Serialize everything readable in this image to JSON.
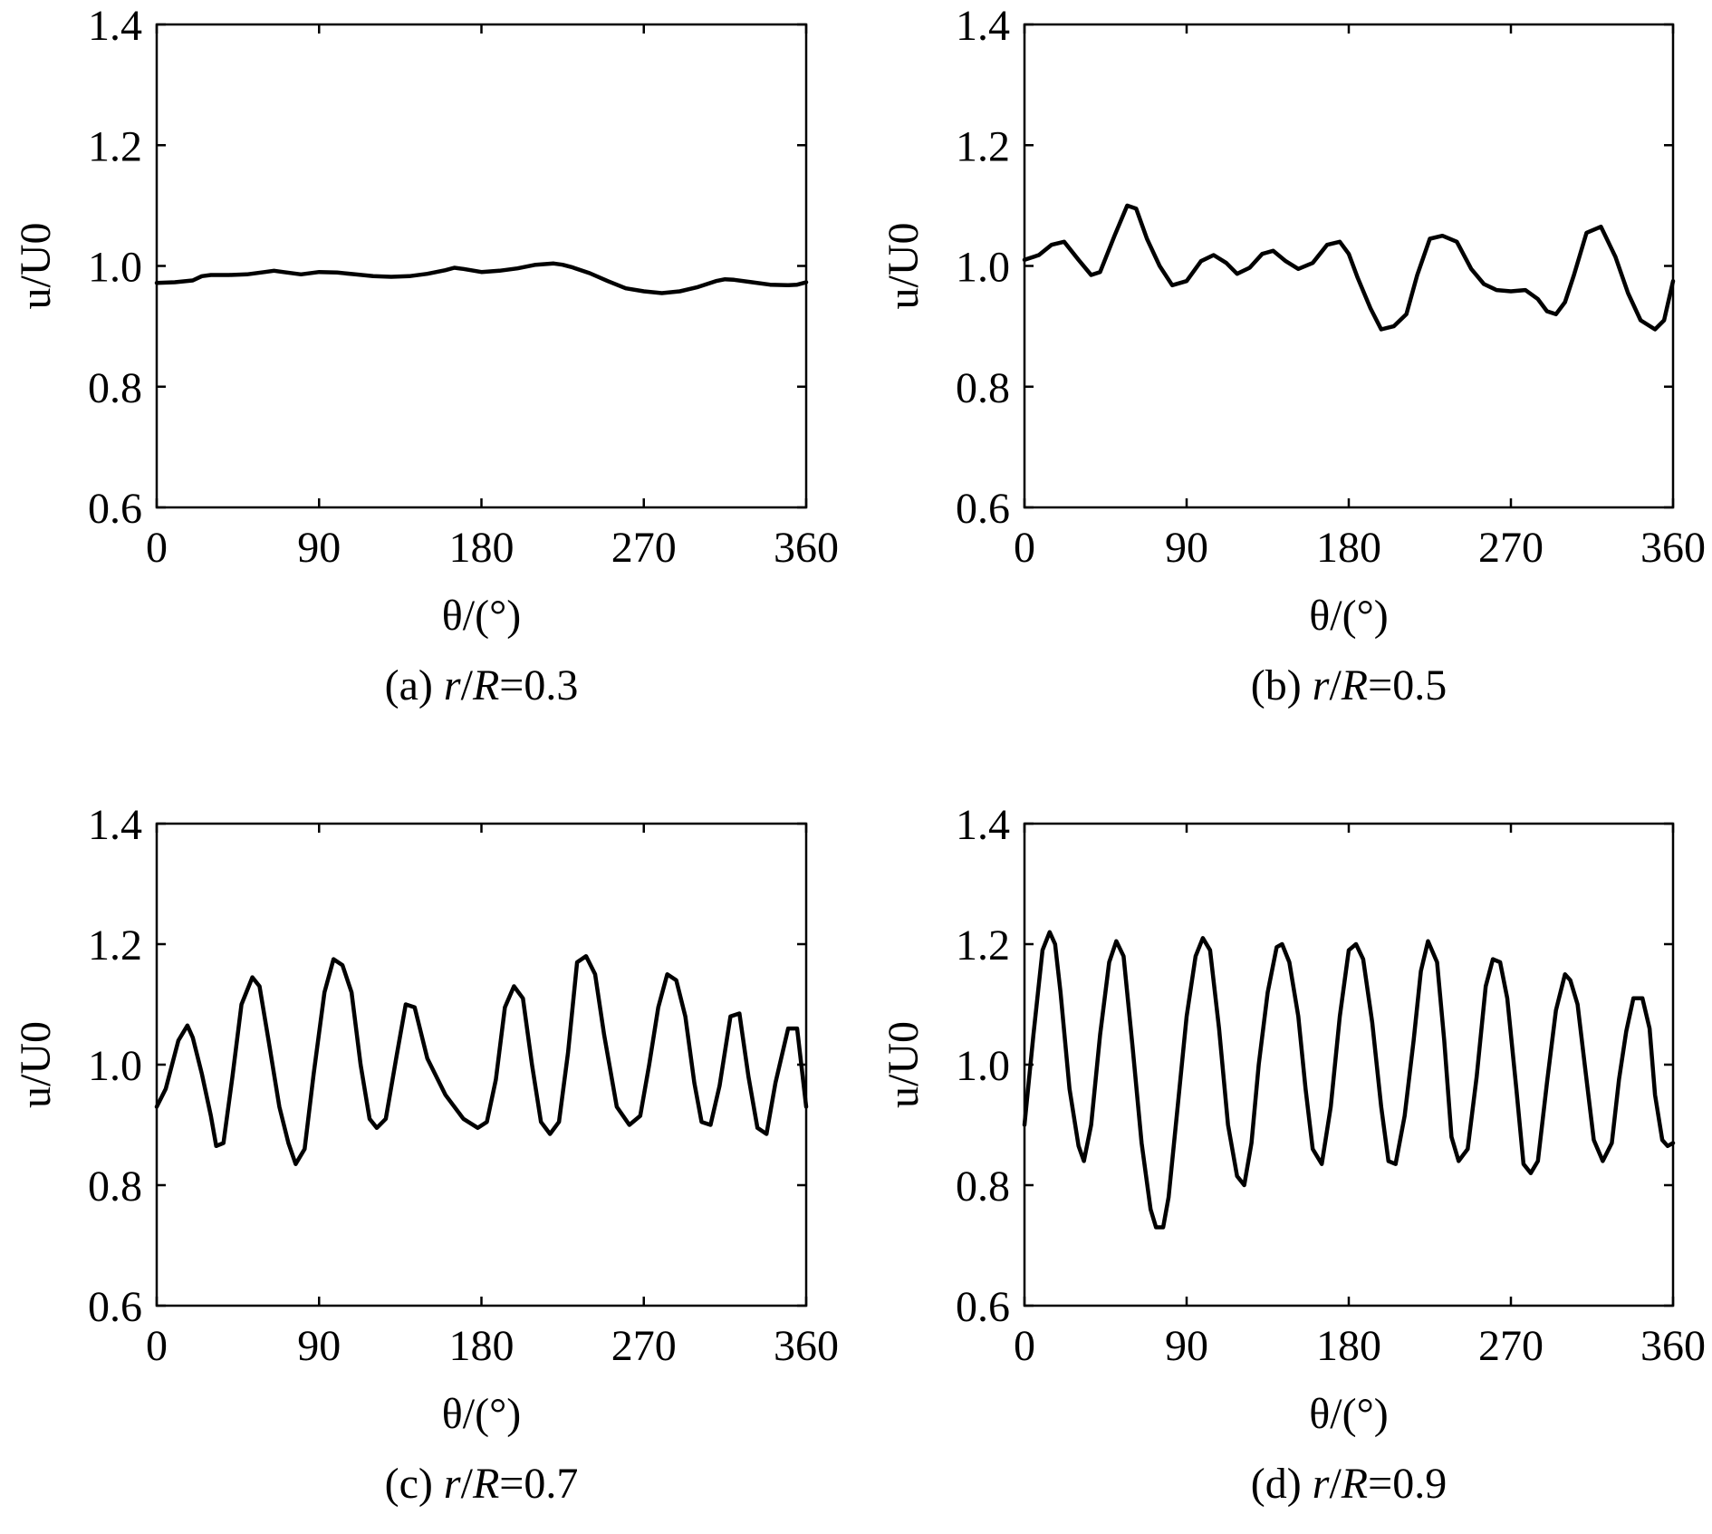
{
  "figure": {
    "panels": [
      {
        "caption": {
          "prefix": "(a) ",
          "var": "r",
          "slash": "/",
          "var2": "R",
          "eq": "=0.3"
        }
      },
      {
        "caption": {
          "prefix": "(b) ",
          "var": "r",
          "slash": "/",
          "var2": "R",
          "eq": "=0.5"
        }
      },
      {
        "caption": {
          "prefix": "(c) ",
          "var": "r",
          "slash": "/",
          "var2": "R",
          "eq": "=0.7"
        }
      },
      {
        "caption": {
          "prefix": "(d) ",
          "var": "r",
          "slash": "/",
          "var2": "R",
          "eq": "=0.9"
        }
      }
    ]
  },
  "chart_data": [
    {
      "type": "line",
      "title": "(a) r/R=0.3",
      "xlabel": "θ/(°)",
      "ylabel": "u/U0",
      "xlim": [
        0,
        360
      ],
      "ylim": [
        0.6,
        1.4
      ],
      "xticks": [
        "0",
        "90",
        "180",
        "270",
        "360"
      ],
      "yticks": [
        "0.6",
        "0.8",
        "1.0",
        "1.2",
        "1.4"
      ],
      "grid": false,
      "series": [
        {
          "name": "u/U0",
          "x": [
            0,
            10,
            20,
            25,
            30,
            40,
            50,
            60,
            65,
            70,
            80,
            90,
            100,
            110,
            120,
            130,
            140,
            150,
            160,
            165,
            170,
            180,
            190,
            200,
            210,
            220,
            225,
            230,
            240,
            250,
            260,
            270,
            280,
            290,
            300,
            310,
            315,
            320,
            330,
            340,
            350,
            355,
            360
          ],
          "values": [
            0.972,
            0.973,
            0.976,
            0.983,
            0.985,
            0.985,
            0.986,
            0.99,
            0.992,
            0.99,
            0.986,
            0.99,
            0.989,
            0.986,
            0.983,
            0.982,
            0.983,
            0.987,
            0.993,
            0.997,
            0.995,
            0.99,
            0.992,
            0.996,
            1.002,
            1.004,
            1.002,
            0.998,
            0.988,
            0.975,
            0.963,
            0.958,
            0.955,
            0.958,
            0.965,
            0.975,
            0.978,
            0.977,
            0.973,
            0.969,
            0.968,
            0.969,
            0.973
          ]
        }
      ]
    },
    {
      "type": "line",
      "title": "(b) r/R=0.5",
      "xlabel": "θ/(°)",
      "ylabel": "u/U0",
      "xlim": [
        0,
        360
      ],
      "ylim": [
        0.6,
        1.4
      ],
      "xticks": [
        "0",
        "90",
        "180",
        "270",
        "360"
      ],
      "yticks": [
        "0.6",
        "0.8",
        "1.0",
        "1.2",
        "1.4"
      ],
      "grid": false,
      "series": [
        {
          "name": "u/U0",
          "x": [
            0,
            8,
            15,
            22,
            30,
            37,
            42,
            50,
            57,
            62,
            68,
            75,
            82,
            90,
            98,
            105,
            112,
            118,
            125,
            132,
            138,
            145,
            152,
            160,
            168,
            175,
            180,
            185,
            192,
            198,
            205,
            212,
            218,
            225,
            232,
            240,
            248,
            255,
            262,
            270,
            278,
            285,
            290,
            295,
            300,
            305,
            312,
            320,
            328,
            335,
            342,
            350,
            355,
            360
          ],
          "values": [
            1.01,
            1.018,
            1.035,
            1.04,
            1.01,
            0.985,
            0.99,
            1.05,
            1.1,
            1.095,
            1.045,
            1.0,
            0.968,
            0.975,
            1.008,
            1.018,
            1.005,
            0.987,
            0.997,
            1.02,
            1.025,
            1.008,
            0.995,
            1.005,
            1.035,
            1.04,
            1.02,
            0.98,
            0.93,
            0.895,
            0.9,
            0.92,
            0.985,
            1.045,
            1.05,
            1.04,
            0.995,
            0.97,
            0.96,
            0.958,
            0.96,
            0.945,
            0.925,
            0.92,
            0.94,
            0.985,
            1.055,
            1.065,
            1.015,
            0.955,
            0.91,
            0.895,
            0.91,
            0.975
          ]
        }
      ]
    },
    {
      "type": "line",
      "title": "(c) r/R=0.7",
      "xlabel": "θ/(°)",
      "ylabel": "u/U0",
      "xlim": [
        0,
        360
      ],
      "ylim": [
        0.6,
        1.4
      ],
      "xticks": [
        "0",
        "90",
        "180",
        "270",
        "360"
      ],
      "yticks": [
        "0.6",
        "0.8",
        "1.0",
        "1.2",
        "1.4"
      ],
      "grid": false,
      "series": [
        {
          "name": "u/U0",
          "x": [
            0,
            5,
            12,
            17,
            20,
            25,
            30,
            33,
            37,
            42,
            47,
            53,
            57,
            62,
            68,
            73,
            77,
            82,
            87,
            93,
            98,
            103,
            108,
            113,
            118,
            122,
            127,
            133,
            138,
            143,
            150,
            160,
            170,
            178,
            183,
            188,
            193,
            198,
            203,
            208,
            213,
            218,
            223,
            228,
            233,
            238,
            243,
            248,
            255,
            262,
            268,
            273,
            278,
            283,
            288,
            293,
            298,
            302,
            307,
            312,
            318,
            323,
            328,
            333,
            338,
            343,
            350,
            355,
            360
          ],
          "values": [
            0.93,
            0.96,
            1.04,
            1.065,
            1.045,
            0.985,
            0.915,
            0.865,
            0.87,
            0.98,
            1.1,
            1.145,
            1.13,
            1.04,
            0.93,
            0.87,
            0.835,
            0.86,
            0.985,
            1.12,
            1.175,
            1.165,
            1.12,
            1.0,
            0.91,
            0.895,
            0.91,
            1.015,
            1.1,
            1.095,
            1.01,
            0.95,
            0.91,
            0.895,
            0.905,
            0.975,
            1.095,
            1.13,
            1.11,
            1.0,
            0.905,
            0.885,
            0.905,
            1.02,
            1.17,
            1.18,
            1.15,
            1.05,
            0.93,
            0.9,
            0.915,
            1.0,
            1.095,
            1.15,
            1.14,
            1.08,
            0.97,
            0.905,
            0.9,
            0.965,
            1.08,
            1.085,
            0.98,
            0.895,
            0.885,
            0.97,
            1.06,
            1.06,
            0.93
          ]
        }
      ]
    },
    {
      "type": "line",
      "title": "(d) r/R=0.9",
      "xlabel": "θ/(°)",
      "ylabel": "u/U0",
      "xlim": [
        0,
        360
      ],
      "ylim": [
        0.6,
        1.4
      ],
      "xticks": [
        "0",
        "90",
        "180",
        "270",
        "360"
      ],
      "yticks": [
        "0.6",
        "0.8",
        "1.0",
        "1.2",
        "1.4"
      ],
      "grid": false,
      "series": [
        {
          "name": "u/U0",
          "x": [
            0,
            5,
            10,
            14,
            17,
            20,
            25,
            30,
            33,
            37,
            42,
            47,
            51,
            55,
            60,
            65,
            70,
            73,
            77,
            80,
            85,
            90,
            95,
            99,
            103,
            108,
            113,
            118,
            122,
            126,
            130,
            135,
            140,
            143,
            147,
            152,
            156,
            160,
            165,
            170,
            175,
            180,
            184,
            188,
            193,
            198,
            202,
            206,
            211,
            216,
            220,
            224,
            229,
            233,
            237,
            241,
            246,
            251,
            256,
            260,
            264,
            268,
            273,
            277,
            281,
            285,
            290,
            295,
            300,
            303,
            307,
            311,
            316,
            321,
            326,
            330,
            334,
            338,
            343,
            347,
            350,
            354,
            357,
            360
          ],
          "values": [
            0.9,
            1.05,
            1.19,
            1.22,
            1.2,
            1.12,
            0.96,
            0.865,
            0.84,
            0.9,
            1.05,
            1.17,
            1.205,
            1.18,
            1.03,
            0.87,
            0.76,
            0.73,
            0.73,
            0.78,
            0.93,
            1.08,
            1.18,
            1.21,
            1.19,
            1.06,
            0.9,
            0.815,
            0.8,
            0.87,
            1.0,
            1.12,
            1.195,
            1.2,
            1.17,
            1.08,
            0.96,
            0.86,
            0.835,
            0.93,
            1.08,
            1.19,
            1.2,
            1.175,
            1.07,
            0.93,
            0.84,
            0.835,
            0.915,
            1.04,
            1.155,
            1.205,
            1.17,
            1.04,
            0.88,
            0.84,
            0.86,
            0.98,
            1.13,
            1.175,
            1.17,
            1.11,
            0.96,
            0.835,
            0.82,
            0.84,
            0.97,
            1.09,
            1.15,
            1.14,
            1.1,
            1.0,
            0.875,
            0.84,
            0.87,
            0.975,
            1.055,
            1.11,
            1.11,
            1.06,
            0.95,
            0.875,
            0.865,
            0.87
          ]
        }
      ]
    }
  ]
}
